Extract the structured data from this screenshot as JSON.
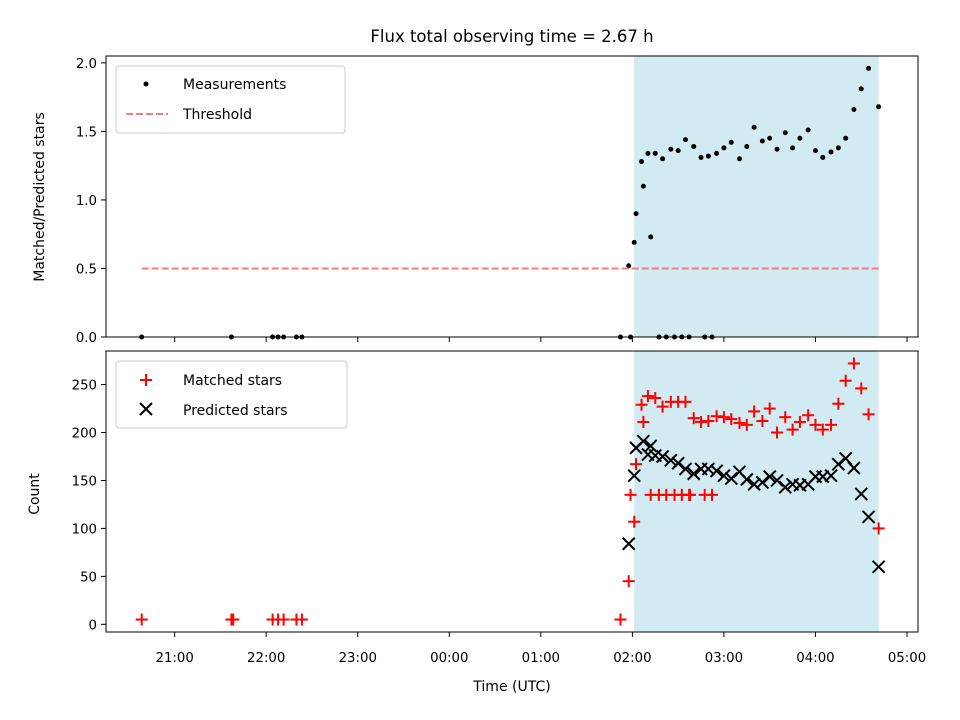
{
  "chart_data": {
    "title": "Flux total observing time = 2.67 h",
    "xlabel": "Time (UTC)",
    "x_units": "hours since 20:00 UTC",
    "xlim": [
      0.25,
      9.12
    ],
    "x_ticks": [
      1,
      2,
      3,
      4,
      5,
      6,
      7,
      8,
      9
    ],
    "x_tick_labels": [
      "21:00",
      "22:00",
      "23:00",
      "00:00",
      "01:00",
      "02:00",
      "03:00",
      "04:00",
      "05:00"
    ],
    "shaded_region": {
      "x0": 6.02,
      "x1": 8.69,
      "color": "#add8e6"
    },
    "charts": [
      {
        "type": "scatter",
        "ylabel": "Matched/Predicted stars",
        "ylim": [
          0,
          2.05
        ],
        "y_ticks": [
          0,
          0.5,
          1,
          1.5,
          2
        ],
        "y_tick_labels": [
          "0.0",
          "0.5",
          "1.0",
          "1.5",
          "2.0"
        ],
        "legend_position": "top-left",
        "series": [
          {
            "name": "Measurements",
            "kind": "dot",
            "color": "#000000",
            "points": [
              [
                0.64,
                0
              ],
              [
                1.62,
                0
              ],
              [
                2.07,
                0
              ],
              [
                2.13,
                0
              ],
              [
                2.19,
                0
              ],
              [
                2.33,
                0
              ],
              [
                2.39,
                0
              ],
              [
                5.87,
                0
              ],
              [
                5.96,
                0.52
              ],
              [
                6.04,
                0.9
              ],
              [
                6.12,
                1.1
              ],
              [
                6.2,
                0.73
              ],
              [
                6.29,
                0
              ],
              [
                6.37,
                0
              ],
              [
                6.46,
                0
              ],
              [
                6.54,
                0
              ],
              [
                6.62,
                0
              ],
              [
                6.79,
                0
              ],
              [
                6.87,
                0
              ],
              [
                5.98,
                0
              ],
              [
                6.02,
                0.69
              ],
              [
                6.1,
                1.28
              ],
              [
                6.17,
                1.34
              ],
              [
                6.25,
                1.34
              ],
              [
                6.33,
                1.3
              ],
              [
                6.42,
                1.37
              ],
              [
                6.5,
                1.36
              ],
              [
                6.58,
                1.44
              ],
              [
                6.67,
                1.39
              ],
              [
                6.75,
                1.31
              ],
              [
                6.83,
                1.32
              ],
              [
                6.92,
                1.34
              ],
              [
                7.0,
                1.38
              ],
              [
                7.08,
                1.42
              ],
              [
                7.17,
                1.3
              ],
              [
                7.25,
                1.39
              ],
              [
                7.33,
                1.53
              ],
              [
                7.42,
                1.43
              ],
              [
                7.5,
                1.45
              ],
              [
                7.58,
                1.37
              ],
              [
                7.67,
                1.49
              ],
              [
                7.75,
                1.38
              ],
              [
                7.83,
                1.45
              ],
              [
                7.92,
                1.51
              ],
              [
                8.0,
                1.36
              ],
              [
                8.08,
                1.31
              ],
              [
                8.17,
                1.35
              ],
              [
                8.25,
                1.38
              ],
              [
                8.33,
                1.45
              ],
              [
                8.42,
                1.66
              ],
              [
                8.5,
                1.81
              ],
              [
                8.58,
                1.96
              ],
              [
                8.69,
                1.68
              ]
            ]
          },
          {
            "name": "Threshold",
            "kind": "dashed-line",
            "color": "#f08080",
            "points": [
              [
                0.64,
                0.5
              ],
              [
                8.69,
                0.5
              ]
            ]
          }
        ]
      },
      {
        "type": "scatter",
        "ylabel": "Count",
        "ylim": [
          -8,
          285
        ],
        "y_ticks": [
          0,
          50,
          100,
          150,
          200,
          250
        ],
        "y_tick_labels": [
          "0",
          "50",
          "100",
          "150",
          "200",
          "250"
        ],
        "legend_position": "top-left",
        "series": [
          {
            "name": "Matched stars",
            "kind": "plus",
            "color": "#ff0000",
            "points": [
              [
                0.64,
                5
              ],
              [
                1.62,
                5
              ],
              [
                1.64,
                5
              ],
              [
                2.07,
                5
              ],
              [
                2.13,
                5
              ],
              [
                2.19,
                5
              ],
              [
                2.33,
                5
              ],
              [
                2.39,
                5
              ],
              [
                5.87,
                5
              ],
              [
                5.96,
                45
              ],
              [
                6.04,
                167
              ],
              [
                6.12,
                211
              ],
              [
                6.2,
                135
              ],
              [
                6.29,
                135
              ],
              [
                6.37,
                135
              ],
              [
                6.46,
                135
              ],
              [
                6.54,
                135
              ],
              [
                6.62,
                135
              ],
              [
                6.63,
                135
              ],
              [
                6.79,
                135
              ],
              [
                6.87,
                135
              ],
              [
                5.98,
                135
              ],
              [
                6.02,
                107
              ],
              [
                6.1,
                229
              ],
              [
                6.17,
                238
              ],
              [
                6.25,
                236
              ],
              [
                6.33,
                227
              ],
              [
                6.42,
                232
              ],
              [
                6.5,
                232
              ],
              [
                6.58,
                232
              ],
              [
                6.67,
                215
              ],
              [
                6.75,
                211
              ],
              [
                6.83,
                212
              ],
              [
                6.92,
                217
              ],
              [
                7.0,
                216
              ],
              [
                7.08,
                214
              ],
              [
                7.17,
                210
              ],
              [
                7.25,
                208
              ],
              [
                7.33,
                222
              ],
              [
                7.42,
                212
              ],
              [
                7.5,
                225
              ],
              [
                7.58,
                200
              ],
              [
                7.67,
                216
              ],
              [
                7.75,
                203
              ],
              [
                7.83,
                211
              ],
              [
                7.92,
                218
              ],
              [
                8.0,
                208
              ],
              [
                8.08,
                203
              ],
              [
                8.17,
                208
              ],
              [
                8.25,
                230
              ],
              [
                8.33,
                254
              ],
              [
                8.42,
                272
              ],
              [
                8.5,
                246
              ],
              [
                8.58,
                219
              ],
              [
                8.69,
                100
              ]
            ]
          },
          {
            "name": "Predicted stars",
            "kind": "cross",
            "color": "#000000",
            "points": [
              [
                5.96,
                84
              ],
              [
                6.04,
                184
              ],
              [
                6.12,
                191
              ],
              [
                6.2,
                186
              ],
              [
                6.02,
                155
              ],
              [
                6.17,
                177
              ],
              [
                6.25,
                176
              ],
              [
                6.33,
                175
              ],
              [
                6.42,
                171
              ],
              [
                6.5,
                168
              ],
              [
                6.58,
                162
              ],
              [
                6.67,
                157
              ],
              [
                6.75,
                162
              ],
              [
                6.83,
                162
              ],
              [
                6.92,
                160
              ],
              [
                7.0,
                155
              ],
              [
                7.08,
                152
              ],
              [
                7.17,
                159
              ],
              [
                7.25,
                151
              ],
              [
                7.33,
                146
              ],
              [
                7.42,
                148
              ],
              [
                7.5,
                154
              ],
              [
                7.58,
                150
              ],
              [
                7.67,
                143
              ],
              [
                7.75,
                146
              ],
              [
                7.83,
                145
              ],
              [
                7.92,
                146
              ],
              [
                8.0,
                154
              ],
              [
                8.08,
                154
              ],
              [
                8.17,
                155
              ],
              [
                8.25,
                167
              ],
              [
                8.33,
                173
              ],
              [
                8.42,
                163
              ],
              [
                8.5,
                136
              ],
              [
                8.58,
                112
              ],
              [
                8.69,
                60
              ]
            ]
          }
        ]
      }
    ]
  }
}
